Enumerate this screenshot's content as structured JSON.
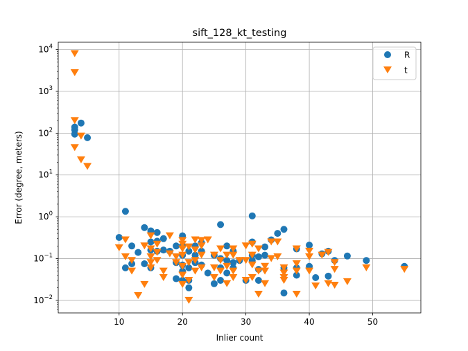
{
  "chart_data": {
    "type": "scatter",
    "title": "sift_128_kt_testing",
    "xlabel": "Inlier count",
    "ylabel": "Error (degree, meters)",
    "xlim": [
      0.4,
      57.6
    ],
    "ylim": [
      0.005,
      15000
    ],
    "yscale": "log",
    "grid": true,
    "legend_position": "top-right",
    "x_ticks": [
      {
        "value": 10,
        "label": "10"
      },
      {
        "value": 20,
        "label": "20"
      },
      {
        "value": 30,
        "label": "30"
      },
      {
        "value": 40,
        "label": "40"
      },
      {
        "value": 50,
        "label": "50"
      }
    ],
    "y_ticks": [
      {
        "exp": -2,
        "base": "10",
        "sup": "−2"
      },
      {
        "exp": -1,
        "base": "10",
        "sup": "−1"
      },
      {
        "exp": 0,
        "base": "10",
        "sup": "0"
      },
      {
        "exp": 1,
        "base": "10",
        "sup": "1"
      },
      {
        "exp": 2,
        "base": "10",
        "sup": "2"
      },
      {
        "exp": 3,
        "base": "10",
        "sup": "3"
      },
      {
        "exp": 4,
        "base": "10",
        "sup": "4"
      }
    ],
    "series": [
      {
        "name": "R",
        "color": "#1f77b4",
        "marker": "circle",
        "points": [
          [
            3,
            140
          ],
          [
            3,
            120
          ],
          [
            3,
            95
          ],
          [
            4,
            175
          ],
          [
            5,
            78
          ],
          [
            10,
            0.32
          ],
          [
            11,
            1.35
          ],
          [
            11,
            0.06
          ],
          [
            12,
            0.2
          ],
          [
            12,
            0.075
          ],
          [
            13,
            0.14
          ],
          [
            14,
            0.55
          ],
          [
            14,
            0.075
          ],
          [
            15,
            0.46
          ],
          [
            15,
            0.25
          ],
          [
            15,
            0.16
          ],
          [
            15,
            0.06
          ],
          [
            16,
            0.42
          ],
          [
            16,
            0.26
          ],
          [
            16,
            0.15
          ],
          [
            17,
            0.3
          ],
          [
            17,
            0.16
          ],
          [
            18,
            0.15
          ],
          [
            19,
            0.2
          ],
          [
            19,
            0.08
          ],
          [
            19,
            0.033
          ],
          [
            20,
            0.35
          ],
          [
            20,
            0.2
          ],
          [
            20,
            0.12
          ],
          [
            20,
            0.07
          ],
          [
            20,
            0.05
          ],
          [
            20,
            0.03
          ],
          [
            21,
            0.15
          ],
          [
            21,
            0.06
          ],
          [
            21,
            0.03
          ],
          [
            21,
            0.02
          ],
          [
            22,
            0.2
          ],
          [
            22,
            0.12
          ],
          [
            22,
            0.08
          ],
          [
            23,
            0.24
          ],
          [
            23,
            0.15
          ],
          [
            23,
            0.07
          ],
          [
            24,
            0.045
          ],
          [
            25,
            0.12
          ],
          [
            25,
            0.025
          ],
          [
            26,
            0.65
          ],
          [
            26,
            0.1
          ],
          [
            26,
            0.06
          ],
          [
            26,
            0.03
          ],
          [
            27,
            0.2
          ],
          [
            27,
            0.09
          ],
          [
            27,
            0.045
          ],
          [
            28,
            0.15
          ],
          [
            28,
            0.08
          ],
          [
            28,
            0.06
          ],
          [
            29,
            0.09
          ],
          [
            30,
            0.03
          ],
          [
            31,
            1.05
          ],
          [
            31,
            0.25
          ],
          [
            31,
            0.12
          ],
          [
            31,
            0.09
          ],
          [
            32,
            0.11
          ],
          [
            32,
            0.055
          ],
          [
            32,
            0.03
          ],
          [
            33,
            0.19
          ],
          [
            33,
            0.12
          ],
          [
            34,
            0.28
          ],
          [
            35,
            0.4
          ],
          [
            36,
            0.5
          ],
          [
            36,
            0.06
          ],
          [
            36,
            0.015
          ],
          [
            38,
            0.17
          ],
          [
            38,
            0.06
          ],
          [
            38,
            0.04
          ],
          [
            40,
            0.21
          ],
          [
            40,
            0.065
          ],
          [
            41,
            0.035
          ],
          [
            42,
            0.13
          ],
          [
            43,
            0.15
          ],
          [
            43,
            0.038
          ],
          [
            44,
            0.09
          ],
          [
            46,
            0.115
          ],
          [
            49,
            0.09
          ],
          [
            55,
            0.065
          ]
        ]
      },
      {
        "name": "t",
        "color": "#ff7f0e",
        "marker": "triangle-down",
        "points": [
          [
            3,
            8000
          ],
          [
            3,
            2800
          ],
          [
            3,
            200
          ],
          [
            3,
            45
          ],
          [
            4,
            85
          ],
          [
            4,
            23
          ],
          [
            5,
            16
          ],
          [
            10,
            0.18
          ],
          [
            11,
            0.28
          ],
          [
            11,
            0.11
          ],
          [
            12,
            0.09
          ],
          [
            12,
            0.05
          ],
          [
            13,
            0.013
          ],
          [
            14,
            0.2
          ],
          [
            14,
            0.024
          ],
          [
            15,
            0.35
          ],
          [
            15,
            0.17
          ],
          [
            15,
            0.11
          ],
          [
            15,
            0.08
          ],
          [
            15,
            0.06
          ],
          [
            16,
            0.22
          ],
          [
            16,
            0.14
          ],
          [
            16,
            0.09
          ],
          [
            17,
            0.05
          ],
          [
            17,
            0.035
          ],
          [
            18,
            0.35
          ],
          [
            18,
            0.13
          ],
          [
            19,
            0.11
          ],
          [
            19,
            0.08
          ],
          [
            20,
            0.27
          ],
          [
            20,
            0.22
          ],
          [
            20,
            0.17
          ],
          [
            20,
            0.12
          ],
          [
            20,
            0.065
          ],
          [
            20,
            0.04
          ],
          [
            20,
            0.024
          ],
          [
            21,
            0.19
          ],
          [
            21,
            0.08
          ],
          [
            21,
            0.03
          ],
          [
            21,
            0.01
          ],
          [
            22,
            0.28
          ],
          [
            22,
            0.16
          ],
          [
            22,
            0.09
          ],
          [
            22,
            0.05
          ],
          [
            23,
            0.27
          ],
          [
            23,
            0.2
          ],
          [
            23,
            0.12
          ],
          [
            23,
            0.06
          ],
          [
            24,
            0.28
          ],
          [
            25,
            0.12
          ],
          [
            25,
            0.06
          ],
          [
            25,
            0.035
          ],
          [
            26,
            0.17
          ],
          [
            26,
            0.09
          ],
          [
            26,
            0.05
          ],
          [
            27,
            0.12
          ],
          [
            27,
            0.065
          ],
          [
            27,
            0.025
          ],
          [
            28,
            0.17
          ],
          [
            28,
            0.12
          ],
          [
            28,
            0.05
          ],
          [
            28,
            0.035
          ],
          [
            29,
            0.09
          ],
          [
            30,
            0.2
          ],
          [
            30,
            0.09
          ],
          [
            30,
            0.03
          ],
          [
            31,
            0.22
          ],
          [
            31,
            0.12
          ],
          [
            31,
            0.07
          ],
          [
            31,
            0.035
          ],
          [
            32,
            0.17
          ],
          [
            32,
            0.05
          ],
          [
            32,
            0.014
          ],
          [
            33,
            0.065
          ],
          [
            33,
            0.05
          ],
          [
            33,
            0.025
          ],
          [
            34,
            0.25
          ],
          [
            34,
            0.1
          ],
          [
            35,
            0.25
          ],
          [
            35,
            0.11
          ],
          [
            36,
            0.06
          ],
          [
            36,
            0.045
          ],
          [
            36,
            0.035
          ],
          [
            36,
            0.03
          ],
          [
            38,
            0.17
          ],
          [
            38,
            0.075
          ],
          [
            38,
            0.05
          ],
          [
            38,
            0.014
          ],
          [
            40,
            0.15
          ],
          [
            40,
            0.11
          ],
          [
            40,
            0.05
          ],
          [
            41,
            0.022
          ],
          [
            42,
            0.12
          ],
          [
            43,
            0.14
          ],
          [
            43,
            0.025
          ],
          [
            44,
            0.08
          ],
          [
            44,
            0.055
          ],
          [
            44,
            0.023
          ],
          [
            46,
            0.028
          ],
          [
            49,
            0.06
          ],
          [
            55,
            0.055
          ]
        ]
      }
    ]
  }
}
